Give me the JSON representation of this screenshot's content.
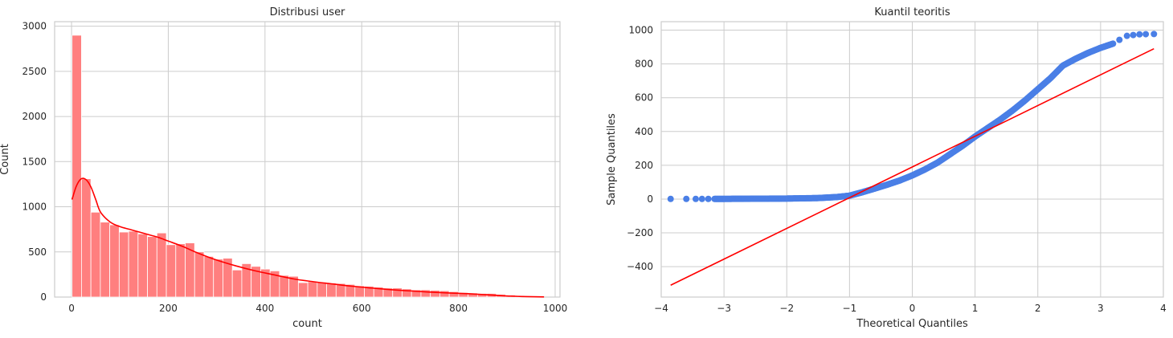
{
  "chart_data": [
    {
      "type": "bar",
      "subtype": "histogram-with-kde",
      "title": "Distribusi user",
      "xlabel": "count",
      "ylabel": "Count",
      "xlim": [
        -35,
        1010
      ],
      "ylim": [
        0,
        3050
      ],
      "x_ticks": [
        0,
        200,
        400,
        600,
        800,
        1000
      ],
      "y_ticks": [
        0,
        500,
        1000,
        1500,
        2000,
        2500,
        3000
      ],
      "grid": true,
      "bar_color": "#ff7f7f",
      "line_color": "#ff0000",
      "bin_width": 19.5,
      "bin_start": 1,
      "values": [
        2900,
        1310,
        940,
        830,
        800,
        720,
        730,
        700,
        670,
        710,
        580,
        590,
        600,
        500,
        450,
        420,
        430,
        300,
        370,
        340,
        310,
        290,
        240,
        230,
        160,
        170,
        165,
        155,
        150,
        140,
        125,
        120,
        110,
        100,
        100,
        90,
        80,
        80,
        75,
        70,
        60,
        50,
        45,
        40,
        40,
        30,
        22,
        15,
        10,
        5
      ],
      "kde": {
        "x": [
          1,
          10,
          20,
          30,
          40,
          50,
          60,
          80,
          100,
          120,
          140,
          160,
          180,
          200,
          230,
          260,
          300,
          340,
          380,
          420,
          460,
          500,
          540,
          580,
          620,
          660,
          700,
          740,
          780,
          820,
          860,
          900,
          940,
          977
        ],
        "y": [
          1080,
          1230,
          1310,
          1300,
          1220,
          1080,
          940,
          830,
          780,
          750,
          720,
          690,
          660,
          620,
          560,
          490,
          410,
          345,
          290,
          245,
          200,
          170,
          145,
          120,
          100,
          82,
          68,
          55,
          45,
          37,
          25,
          12,
          5,
          2
        ]
      }
    },
    {
      "type": "scatter",
      "subtype": "qq-plot",
      "title": "Kuantil teoritis",
      "xlabel": "Theoretical Quantiles",
      "ylabel": "Sample Quantiles",
      "xlim": [
        -4,
        4
      ],
      "ylim": [
        -580,
        1050
      ],
      "x_ticks": [
        -4,
        -3,
        -2,
        -1,
        0,
        1,
        2,
        3,
        4
      ],
      "y_ticks": [
        -400,
        -200,
        0,
        200,
        400,
        600,
        800,
        1000
      ],
      "grid": true,
      "point_color": "#4a7fe6",
      "line_color": "#ff0000",
      "reference_line": {
        "x": [
          -3.85,
          3.85
        ],
        "y": [
          -510,
          890
        ]
      },
      "sample_curve": {
        "x": [
          -3.85,
          -3.5,
          -3.0,
          -2.5,
          -2.0,
          -1.5,
          -1.2,
          -1.0,
          -0.8,
          -0.6,
          -0.4,
          -0.2,
          0.0,
          0.2,
          0.4,
          0.6,
          0.8,
          1.0,
          1.2,
          1.4,
          1.6,
          1.8,
          2.0,
          2.2,
          2.4,
          2.6,
          2.8,
          3.0,
          3.2,
          3.4,
          3.6,
          3.85
        ],
        "y": [
          1,
          1,
          1,
          2,
          3,
          6,
          12,
          20,
          40,
          62,
          85,
          110,
          140,
          175,
          215,
          265,
          315,
          370,
          420,
          470,
          525,
          585,
          650,
          715,
          790,
          830,
          865,
          895,
          920,
          965,
          975,
          977
        ]
      }
    }
  ]
}
